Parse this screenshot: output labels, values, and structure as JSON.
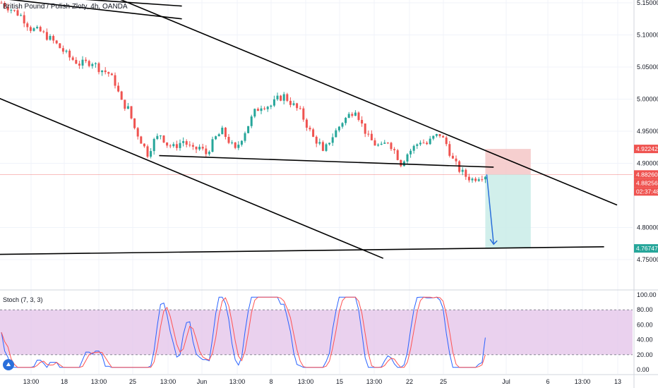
{
  "header": {
    "title": "British Pound / Polish Zloty, 4h, OANDA"
  },
  "chart_data": [
    {
      "type": "candlestick",
      "title": "British Pound / Polish Zloty, 4h, OANDA",
      "ylim": [
        4.73,
        5.15
      ],
      "y_ticks": [
        "5.15000",
        "5.10000",
        "5.05000",
        "5.00000",
        "4.95000",
        "4.90000",
        "4.80000",
        "4.75000"
      ],
      "x_ticks": [
        "13:00",
        "18",
        "13:00",
        "25",
        "13:00",
        "Jun",
        "13:00",
        "8",
        "13:00",
        "15",
        "13:00",
        "22",
        "25",
        "Jul",
        "6",
        "13:00",
        "13"
      ],
      "close_path": [
        [
          0,
          5.15
        ],
        [
          6,
          5.13
        ],
        [
          9,
          5.11
        ],
        [
          12,
          5.105
        ],
        [
          16,
          5.09
        ],
        [
          21,
          5.065
        ],
        [
          24,
          5.055
        ],
        [
          28,
          5.058
        ],
        [
          30,
          5.048
        ],
        [
          33,
          5.04
        ],
        [
          35,
          5.025
        ],
        [
          37,
          4.995
        ],
        [
          39,
          4.985
        ],
        [
          41,
          4.955
        ],
        [
          43,
          4.935
        ],
        [
          45,
          4.915
        ],
        [
          47,
          4.935
        ],
        [
          49,
          4.945
        ],
        [
          51,
          4.93
        ],
        [
          53,
          4.925
        ],
        [
          56,
          4.935
        ],
        [
          59,
          4.92
        ],
        [
          61,
          4.925
        ],
        [
          63,
          4.915
        ],
        [
          66,
          4.94
        ],
        [
          68,
          4.95
        ],
        [
          70,
          4.935
        ],
        [
          72,
          4.92
        ],
        [
          74,
          4.94
        ],
        [
          76,
          4.96
        ],
        [
          78,
          4.98
        ],
        [
          80,
          4.99
        ],
        [
          83,
          4.99
        ],
        [
          85,
          5.0
        ],
        [
          87,
          5.005
        ],
        [
          89,
          4.995
        ],
        [
          92,
          4.98
        ],
        [
          94,
          4.96
        ],
        [
          96,
          4.94
        ],
        [
          98,
          4.93
        ],
        [
          99,
          4.915
        ],
        [
          101,
          4.935
        ],
        [
          103,
          4.95
        ],
        [
          105,
          4.965
        ],
        [
          107,
          4.975
        ],
        [
          109,
          4.985
        ],
        [
          111,
          4.96
        ],
        [
          113,
          4.94
        ],
        [
          115,
          4.93
        ],
        [
          117,
          4.925
        ],
        [
          119,
          4.935
        ],
        [
          121,
          4.92
        ],
        [
          123,
          4.9
        ],
        [
          125,
          4.915
        ],
        [
          127,
          4.925
        ],
        [
          129,
          4.935
        ],
        [
          131,
          4.93
        ],
        [
          133,
          4.94
        ],
        [
          135,
          4.945
        ],
        [
          137,
          4.93
        ],
        [
          139,
          4.905
        ],
        [
          141,
          4.89
        ],
        [
          143,
          4.88
        ],
        [
          145,
          4.875
        ],
        [
          147,
          4.88
        ],
        [
          149,
          4.882
        ]
      ],
      "last_index": 149,
      "trend_lines": [
        {
          "from": [
            -2,
            5.158
          ],
          "to": [
            56,
            5.125
          ]
        },
        {
          "from": [
            -2,
            5.165
          ],
          "to": [
            56,
            5.145
          ]
        },
        {
          "from": [
            30,
            5.17
          ],
          "to": [
            190,
            4.835
          ]
        },
        {
          "from": [
            49,
            4.912
          ],
          "to": [
            152,
            4.894
          ]
        },
        {
          "from": [
            -2,
            5.005
          ],
          "to": [
            118,
            4.752
          ]
        },
        {
          "from": [
            -2,
            4.758
          ],
          "to": [
            186,
            4.77
          ]
        }
      ],
      "position": {
        "type": "short",
        "entry": 4.8826,
        "stop": 4.92242,
        "target": 4.76747,
        "start_index": 149,
        "end_index": 163,
        "projection_to": [
          152,
          4.774
        ]
      },
      "price_tags": [
        {
          "label": "4.92242",
          "value": 4.92242,
          "color": "#ef5350"
        },
        {
          "label": "4.88260",
          "value": 4.8826,
          "color": "#ef5350"
        },
        {
          "label": "4.88256",
          "value": 4.88256,
          "color": "#ef5350"
        },
        {
          "label": "02:37:48",
          "value": 4.87,
          "color": "#ef5350"
        },
        {
          "label": "4.76747",
          "value": 4.76747,
          "color": "#26a69a"
        }
      ]
    },
    {
      "type": "line",
      "title": "Stoch (7, 3, 3)",
      "ylim": [
        0,
        100
      ],
      "y_ticks": [
        "100.00",
        "80.00",
        "60.00",
        "40.00",
        "20.00",
        "0.00"
      ],
      "bands": [
        80,
        20
      ],
      "series": [
        {
          "key": "k",
          "color": "#2962ff"
        },
        {
          "key": "d",
          "color": "#ff5252"
        }
      ]
    }
  ],
  "colors": {
    "up": "#26a69a",
    "down": "#ef5350",
    "band_fill": "#e1bee7",
    "stop_zone": "#f4c7c7",
    "target_zone": "#c9ece8",
    "arrow": "#2a6fdb"
  }
}
